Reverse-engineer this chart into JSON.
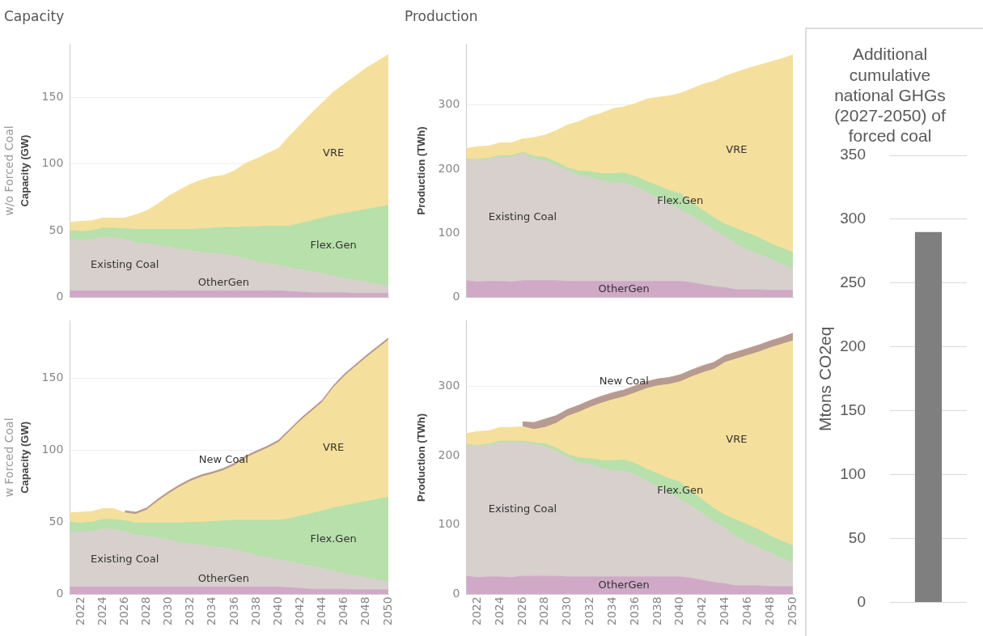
{
  "chart_data": [
    {
      "type": "area",
      "title": "Capacity",
      "ylabel": "Capacity (GW)",
      "annotations": [
        "w/o Forced Coal"
      ],
      "stacked": true,
      "legend": false,
      "grid": "y",
      "tick_labels": "y",
      "xlim": [
        2021,
        2050
      ],
      "xticks": [
        2022,
        2024,
        2026,
        2028,
        2030,
        2032,
        2034,
        2036,
        2038,
        2040,
        2042,
        2044,
        2046,
        2048,
        2050
      ],
      "ylim": [
        0,
        190
      ],
      "yticks": [
        0,
        50,
        100,
        150
      ],
      "x": [
        2021,
        2022,
        2023,
        2024,
        2025,
        2026,
        2027,
        2028,
        2029,
        2030,
        2031,
        2032,
        2033,
        2034,
        2035,
        2036,
        2037,
        2038,
        2039,
        2040,
        2041,
        2042,
        2043,
        2044,
        2045,
        2046,
        2047,
        2048,
        2049,
        2050
      ],
      "series": [
        {
          "name": "OtherGen",
          "color": "#d0a9c7",
          "values": [
            5,
            5,
            5,
            5,
            5,
            5,
            5,
            5,
            5,
            5,
            5,
            5,
            5,
            5,
            5,
            5,
            5,
            5,
            5,
            5,
            4.5,
            4,
            3.5,
            3.5,
            3.5,
            3.5,
            3,
            3,
            3,
            3
          ]
        },
        {
          "name": "Existing Coal",
          "color": "#d7d0cd",
          "values": [
            38.3,
            38,
            38.5,
            40.5,
            40,
            38.5,
            36,
            35.5,
            34,
            33,
            31,
            30,
            29,
            28,
            27.5,
            26,
            24,
            22,
            20.5,
            19,
            18,
            17,
            16,
            14.5,
            12.5,
            11,
            10,
            8.5,
            7,
            5.3
          ]
        },
        {
          "name": "Flex.Gen",
          "color": "#b7e0aa",
          "values": [
            6.7,
            6.5,
            6.5,
            6.5,
            7,
            8,
            10,
            10.5,
            12,
            13,
            15,
            16,
            17.5,
            19,
            20,
            21.5,
            24,
            26,
            28,
            29.5,
            31,
            34.5,
            38,
            41.5,
            45.5,
            48.5,
            51.5,
            54.5,
            57.5,
            60.7
          ]
        },
        {
          "name": "VRE",
          "color": "#f5df9c",
          "values": [
            6.4,
            7.5,
            7.5,
            7.5,
            7.5,
            8,
            11,
            14,
            19,
            25,
            29.5,
            34,
            36.5,
            38.5,
            39,
            42.5,
            47.5,
            51,
            54.5,
            58.2,
            67.5,
            74,
            80.5,
            86.5,
            92.5,
            97,
            101.5,
            106,
            109.5,
            113
          ]
        }
      ]
    },
    {
      "type": "area",
      "title": "Production",
      "ylabel": "Production (TWh)",
      "stacked": true,
      "legend": false,
      "grid": "y",
      "tick_labels": "y",
      "xlim": [
        2021,
        2050
      ],
      "xticks": [
        2022,
        2024,
        2026,
        2028,
        2030,
        2032,
        2034,
        2036,
        2038,
        2040,
        2042,
        2044,
        2046,
        2048,
        2050
      ],
      "ylim": [
        0,
        395
      ],
      "yticks": [
        0,
        100,
        200,
        300
      ],
      "x": [
        2021,
        2022,
        2023,
        2024,
        2025,
        2026,
        2027,
        2028,
        2029,
        2030,
        2031,
        2032,
        2033,
        2034,
        2035,
        2036,
        2037,
        2038,
        2039,
        2040,
        2041,
        2042,
        2043,
        2044,
        2045,
        2046,
        2047,
        2048,
        2049,
        2050
      ],
      "series": [
        {
          "name": "OtherGen",
          "color": "#d0a9c7",
          "values": [
            26,
            24,
            25,
            25,
            24,
            26,
            26,
            26,
            26,
            25,
            25,
            25,
            25,
            25,
            25,
            25,
            25,
            25,
            25,
            25,
            23,
            20,
            17,
            15,
            12,
            12,
            12,
            11,
            11,
            11
          ]
        },
        {
          "name": "Existing Coal",
          "color": "#d7d0cd",
          "values": [
            189,
            190,
            190,
            194,
            195,
            198,
            190,
            187,
            180,
            173,
            165,
            162,
            157,
            154,
            153,
            148,
            139,
            130,
            121,
            112,
            104,
            96,
            88,
            80,
            71,
            62,
            55,
            49,
            41,
            34
          ]
        },
        {
          "name": "Flex.Gen",
          "color": "#b7e0aa",
          "values": [
            1,
            1,
            2,
            2,
            2,
            2,
            4,
            5,
            5,
            4,
            7,
            9,
            11,
            14,
            16,
            16,
            17,
            19,
            21,
            25,
            21,
            20,
            19,
            19,
            24,
            26,
            26,
            24,
            25,
            25
          ]
        },
        {
          "name": "VRE",
          "color": "#f5df9c",
          "values": [
            16,
            20,
            19,
            20,
            20,
            21,
            29,
            35,
            49,
            67,
            77,
            86,
            94,
            101,
            103,
            113,
            128,
            138,
            147,
            156,
            177,
            196,
            213,
            231,
            244,
            257,
            269,
            283,
            295,
            308
          ]
        }
      ]
    },
    {
      "type": "area",
      "ylabel": "Capacity (GW)",
      "annotations": [
        "w Forced Coal"
      ],
      "stacked": true,
      "legend": false,
      "grid": "y",
      "xlim": [
        2021,
        2050
      ],
      "xticks": [
        2022,
        2024,
        2026,
        2028,
        2030,
        2032,
        2034,
        2036,
        2038,
        2040,
        2042,
        2044,
        2046,
        2048,
        2050
      ],
      "ylim": [
        0,
        190
      ],
      "yticks": [
        0,
        50,
        100,
        150
      ],
      "x": [
        2021,
        2022,
        2023,
        2024,
        2025,
        2026,
        2027,
        2028,
        2029,
        2030,
        2031,
        2032,
        2033,
        2034,
        2035,
        2036,
        2037,
        2038,
        2039,
        2040,
        2041,
        2042,
        2043,
        2044,
        2045,
        2046,
        2047,
        2048,
        2049,
        2050
      ],
      "series": [
        {
          "name": "OtherGen",
          "color": "#d0a9c7",
          "values": [
            5,
            5,
            5,
            5,
            5,
            5,
            5,
            5,
            5,
            5,
            5,
            5,
            5,
            5,
            5,
            5,
            5,
            5,
            5,
            5,
            4.5,
            4,
            3.5,
            3.5,
            3.5,
            3.5,
            3,
            3,
            3,
            3
          ]
        },
        {
          "name": "Existing Coal",
          "color": "#d7d0cd",
          "values": [
            38.3,
            38,
            38.5,
            40.5,
            40,
            38.5,
            36,
            35.5,
            34,
            33,
            31,
            30,
            29,
            28,
            27.5,
            26,
            24,
            22,
            20.5,
            19,
            18,
            17,
            16,
            14.5,
            12.5,
            11,
            10,
            8.5,
            7,
            5.3
          ]
        },
        {
          "name": "Flex.Gen",
          "color": "#b7e0aa",
          "values": [
            6.7,
            6.5,
            6.5,
            6.5,
            7,
            7.5,
            8.5,
            9,
            10.5,
            11.5,
            13.5,
            15,
            16,
            17.5,
            18.5,
            20.5,
            22.5,
            24.5,
            26,
            27.5,
            30,
            33.5,
            36.5,
            40,
            44,
            47,
            50,
            53,
            56,
            59.2
          ]
        },
        {
          "name": "VRE",
          "color": "#f5df9c",
          "values": [
            6.4,
            7.5,
            7.5,
            7.5,
            7.5,
            5.5,
            6,
            9,
            15,
            20.3,
            25,
            28.5,
            31.5,
            33,
            35,
            38,
            43,
            46.6,
            50,
            54,
            60.5,
            66,
            71,
            75.5,
            83.5,
            90,
            95,
            100,
            104.5,
            109
          ]
        },
        {
          "name": "New Coal",
          "color": "#b89b90",
          "values": [
            null,
            null,
            null,
            null,
            null,
            1.5,
            1.5,
            1.5,
            1.5,
            1.5,
            1.5,
            1.5,
            1.5,
            1.5,
            1.5,
            1.5,
            1.5,
            1.5,
            1.5,
            1.5,
            1.5,
            1.5,
            1.5,
            1.5,
            1.5,
            1.5,
            1.5,
            1.5,
            1.5,
            1.5
          ]
        }
      ]
    },
    {
      "type": "area",
      "ylabel": "Production (TWh)",
      "stacked": true,
      "legend": false,
      "grid": "y",
      "xlim": [
        2021,
        2050
      ],
      "xticks": [
        2022,
        2024,
        2026,
        2028,
        2030,
        2032,
        2034,
        2036,
        2038,
        2040,
        2042,
        2044,
        2046,
        2048,
        2050
      ],
      "ylim": [
        0,
        395
      ],
      "yticks": [
        0,
        100,
        200,
        300
      ],
      "x": [
        2021,
        2022,
        2023,
        2024,
        2025,
        2026,
        2027,
        2028,
        2029,
        2030,
        2031,
        2032,
        2033,
        2034,
        2035,
        2036,
        2037,
        2038,
        2039,
        2040,
        2041,
        2042,
        2043,
        2044,
        2045,
        2046,
        2047,
        2048,
        2049,
        2050
      ],
      "series": [
        {
          "name": "OtherGen",
          "color": "#d0a9c7",
          "values": [
            26,
            24,
            25,
            25,
            24,
            26,
            26,
            26,
            26,
            25,
            25,
            25,
            25,
            25,
            25,
            25,
            25,
            25,
            25,
            25,
            23,
            20,
            17,
            15,
            12,
            12,
            12,
            11,
            11,
            11
          ]
        },
        {
          "name": "Existing Coal",
          "color": "#d7d0cd",
          "values": [
            189,
            190,
            190,
            194,
            195,
            193,
            191,
            187,
            180,
            173,
            165,
            162,
            157,
            154,
            153,
            148,
            139,
            130,
            121,
            112,
            104,
            96,
            88,
            80,
            71,
            62,
            55,
            49,
            41,
            34
          ]
        },
        {
          "name": "Flex.Gen",
          "color": "#b7e0aa",
          "values": [
            1,
            1,
            2,
            2,
            2,
            2,
            2,
            4,
            5,
            4,
            7,
            9,
            11,
            14,
            16,
            16,
            17,
            19,
            21,
            25,
            21,
            20,
            19,
            19,
            24,
            26,
            26,
            24,
            25,
            25
          ]
        },
        {
          "name": "VRE",
          "color": "#f5df9c",
          "values": [
            16,
            20,
            19,
            20,
            20,
            21,
            19,
            24,
            36,
            55,
            66,
            74,
            83,
            88,
            91,
            102,
            116,
            127,
            136,
            145,
            166,
            184,
            201,
            221,
            233,
            245,
            257,
            272,
            284,
            296
          ]
        },
        {
          "name": "New Coal",
          "color": "#b89b90",
          "values": [
            null,
            null,
            null,
            null,
            null,
            7,
            10,
            12,
            11,
            10,
            10,
            10,
            10,
            10,
            10,
            10,
            10,
            10,
            10,
            10,
            10,
            10,
            10,
            10,
            10,
            10,
            10,
            10,
            10,
            11
          ]
        }
      ]
    },
    {
      "type": "bar",
      "title": "Additional cumulative national GHGs (2027-2050) of forced coal",
      "ylabel": "Mtons CO2eq",
      "categories": [
        null
      ],
      "values": [
        290
      ],
      "color": "#7f7f7f",
      "legend": false,
      "grid": "y",
      "tick_labels": "y",
      "ylim": [
        0,
        350
      ],
      "yticks": [
        0,
        50,
        100,
        150,
        200,
        250,
        300,
        350
      ]
    }
  ]
}
